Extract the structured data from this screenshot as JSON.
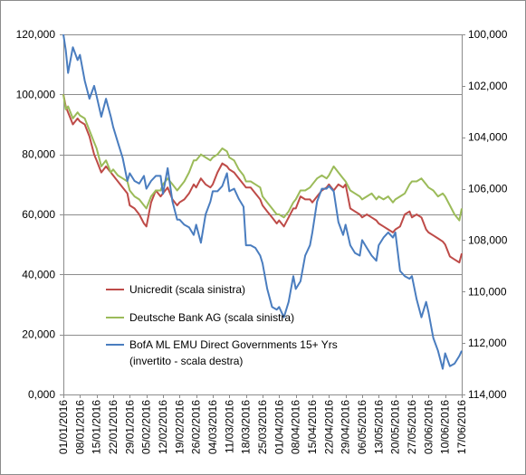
{
  "chart_data": {
    "type": "line",
    "y_left": {
      "min": 0,
      "max": 120000,
      "ticks": [
        0,
        20000,
        40000,
        60000,
        80000,
        100000,
        120000
      ],
      "tick_labels": [
        "0,000",
        "20,000",
        "40,000",
        "60,000",
        "80,000",
        "100,000",
        "120,000"
      ]
    },
    "y_right": {
      "min": 100000,
      "max": 114000,
      "inverted": true,
      "ticks": [
        100000,
        102000,
        104000,
        106000,
        108000,
        110000,
        112000,
        114000
      ],
      "tick_labels": [
        "100,000",
        "102,000",
        "104,000",
        "106,000",
        "108,000",
        "110,000",
        "112,000",
        "114,000"
      ]
    },
    "x_axis": {
      "start": "2016-01-01",
      "end": "2016-06-17",
      "tick_labels": [
        "01/01/2016",
        "08/01/2016",
        "15/01/2016",
        "22/01/2016",
        "29/01/2016",
        "05/02/2016",
        "12/02/2016",
        "19/02/2016",
        "26/02/2016",
        "04/03/2016",
        "11/03/2016",
        "18/03/2016",
        "25/03/2016",
        "01/04/2016",
        "08/04/2016",
        "15/04/2016",
        "22/04/2016",
        "29/04/2016",
        "06/05/2016",
        "13/05/2016",
        "20/05/2016",
        "27/05/2016",
        "03/06/2016",
        "10/06/2016",
        "17/06/2016"
      ]
    },
    "grid": "horizontal",
    "legend_position": "center-left",
    "series": [
      {
        "name": "Unicredit (scala sinistra)",
        "axis": "left",
        "color": "#be4b48",
        "x": [
          "2016-01-01",
          "2016-01-02",
          "2016-01-03",
          "2016-01-05",
          "2016-01-07",
          "2016-01-08",
          "2016-01-10",
          "2016-01-12",
          "2016-01-14",
          "2016-01-15",
          "2016-01-17",
          "2016-01-19",
          "2016-01-21",
          "2016-01-22",
          "2016-01-24",
          "2016-01-26",
          "2016-01-28",
          "2016-01-29",
          "2016-01-31",
          "2016-02-02",
          "2016-02-04",
          "2016-02-05",
          "2016-02-07",
          "2016-02-09",
          "2016-02-11",
          "2016-02-12",
          "2016-02-14",
          "2016-02-16",
          "2016-02-18",
          "2016-02-19",
          "2016-02-21",
          "2016-02-23",
          "2016-02-25",
          "2016-02-26",
          "2016-02-28",
          "2016-03-01",
          "2016-03-03",
          "2016-03-04",
          "2016-03-06",
          "2016-03-08",
          "2016-03-10",
          "2016-03-11",
          "2016-03-13",
          "2016-03-15",
          "2016-03-17",
          "2016-03-18",
          "2016-03-20",
          "2016-03-22",
          "2016-03-24",
          "2016-03-25",
          "2016-03-27",
          "2016-03-29",
          "2016-03-31",
          "2016-04-01",
          "2016-04-03",
          "2016-04-05",
          "2016-04-07",
          "2016-04-08",
          "2016-04-10",
          "2016-04-12",
          "2016-04-14",
          "2016-04-15",
          "2016-04-17",
          "2016-04-19",
          "2016-04-21",
          "2016-04-22",
          "2016-04-24",
          "2016-04-26",
          "2016-04-28",
          "2016-04-29",
          "2016-05-01",
          "2016-05-03",
          "2016-05-05",
          "2016-05-06",
          "2016-05-08",
          "2016-05-10",
          "2016-05-12",
          "2016-05-13",
          "2016-05-15",
          "2016-05-17",
          "2016-05-19",
          "2016-05-20",
          "2016-05-22",
          "2016-05-24",
          "2016-05-26",
          "2016-05-27",
          "2016-05-29",
          "2016-05-31",
          "2016-06-02",
          "2016-06-03",
          "2016-06-05",
          "2016-06-07",
          "2016-06-09",
          "2016-06-10",
          "2016-06-12",
          "2016-06-14",
          "2016-06-16",
          "2016-06-17"
        ],
        "y": [
          100000,
          96000,
          94000,
          90000,
          92000,
          91000,
          90000,
          86000,
          80000,
          78000,
          74000,
          76000,
          74000,
          73000,
          71000,
          69000,
          67000,
          63000,
          62000,
          60000,
          57000,
          56000,
          64000,
          68000,
          66000,
          67000,
          69000,
          65000,
          63000,
          64000,
          65000,
          67000,
          70000,
          69000,
          72000,
          70000,
          69000,
          70000,
          74000,
          77000,
          76000,
          75000,
          74000,
          72000,
          70000,
          69000,
          69000,
          67000,
          65000,
          63000,
          61000,
          59000,
          57000,
          58000,
          56000,
          59000,
          62000,
          62000,
          66000,
          65000,
          65000,
          64000,
          66000,
          68000,
          69000,
          70000,
          68000,
          70000,
          69000,
          70000,
          62000,
          61000,
          60000,
          59000,
          60000,
          59000,
          58000,
          57000,
          56000,
          55000,
          54000,
          55000,
          56000,
          60000,
          61000,
          59000,
          60000,
          59000,
          55000,
          54000,
          53000,
          52000,
          51000,
          50000,
          46000,
          45000,
          44000,
          47000
        ]
      },
      {
        "name": "Deutsche Bank AG (scala sinistra)",
        "axis": "left",
        "color": "#9bbb59",
        "x": [
          "2016-01-01",
          "2016-01-02",
          "2016-01-03",
          "2016-01-05",
          "2016-01-07",
          "2016-01-08",
          "2016-01-10",
          "2016-01-12",
          "2016-01-14",
          "2016-01-15",
          "2016-01-17",
          "2016-01-19",
          "2016-01-21",
          "2016-01-22",
          "2016-01-24",
          "2016-01-26",
          "2016-01-28",
          "2016-01-29",
          "2016-01-31",
          "2016-02-02",
          "2016-02-04",
          "2016-02-05",
          "2016-02-07",
          "2016-02-09",
          "2016-02-11",
          "2016-02-12",
          "2016-02-14",
          "2016-02-16",
          "2016-02-18",
          "2016-02-19",
          "2016-02-21",
          "2016-02-23",
          "2016-02-25",
          "2016-02-26",
          "2016-02-28",
          "2016-03-01",
          "2016-03-03",
          "2016-03-04",
          "2016-03-06",
          "2016-03-08",
          "2016-03-10",
          "2016-03-11",
          "2016-03-13",
          "2016-03-15",
          "2016-03-17",
          "2016-03-18",
          "2016-03-20",
          "2016-03-22",
          "2016-03-24",
          "2016-03-25",
          "2016-03-27",
          "2016-03-29",
          "2016-03-31",
          "2016-04-01",
          "2016-04-03",
          "2016-04-05",
          "2016-04-07",
          "2016-04-08",
          "2016-04-10",
          "2016-04-12",
          "2016-04-14",
          "2016-04-15",
          "2016-04-17",
          "2016-04-19",
          "2016-04-21",
          "2016-04-22",
          "2016-04-24",
          "2016-04-26",
          "2016-04-28",
          "2016-04-29",
          "2016-05-01",
          "2016-05-03",
          "2016-05-05",
          "2016-05-06",
          "2016-05-08",
          "2016-05-10",
          "2016-05-12",
          "2016-05-13",
          "2016-05-15",
          "2016-05-17",
          "2016-05-19",
          "2016-05-20",
          "2016-05-22",
          "2016-05-24",
          "2016-05-26",
          "2016-05-27",
          "2016-05-29",
          "2016-05-31",
          "2016-06-02",
          "2016-06-03",
          "2016-06-05",
          "2016-06-07",
          "2016-06-09",
          "2016-06-10",
          "2016-06-12",
          "2016-06-14",
          "2016-06-16",
          "2016-06-17"
        ],
        "y": [
          100000,
          95000,
          96000,
          92000,
          94000,
          93000,
          92000,
          88000,
          84000,
          82000,
          76000,
          78000,
          74000,
          75000,
          73000,
          72000,
          71000,
          68000,
          66000,
          65000,
          63000,
          62000,
          66000,
          68000,
          68000,
          70000,
          72000,
          70000,
          68000,
          69000,
          71000,
          74000,
          78000,
          78000,
          80000,
          79000,
          78000,
          79000,
          80000,
          82000,
          81000,
          79000,
          78000,
          75000,
          73000,
          71000,
          71000,
          70000,
          69000,
          66000,
          64000,
          62000,
          60000,
          60000,
          59000,
          61000,
          64000,
          65000,
          68000,
          68000,
          69000,
          70000,
          72000,
          73000,
          72000,
          73000,
          76000,
          74000,
          72000,
          71000,
          68000,
          67000,
          66000,
          65000,
          66000,
          67000,
          65000,
          66000,
          65000,
          66000,
          64000,
          65000,
          66000,
          67000,
          70000,
          71000,
          71000,
          72000,
          70000,
          69000,
          68000,
          66000,
          67000,
          66000,
          63000,
          60000,
          58000,
          62000
        ]
      },
      {
        "name": "BofA ML EMU Direct Governments 15+ Yrs (invertito - scala destra)",
        "legend_lines": [
          "BofA ML EMU Direct Governments 15+ Yrs",
          "(invertito - scala destra)"
        ],
        "axis": "right",
        "color": "#4a7dbf",
        "x": [
          "2016-01-01",
          "2016-01-02",
          "2016-01-03",
          "2016-01-05",
          "2016-01-07",
          "2016-01-08",
          "2016-01-10",
          "2016-01-12",
          "2016-01-14",
          "2016-01-15",
          "2016-01-17",
          "2016-01-19",
          "2016-01-21",
          "2016-01-22",
          "2016-01-24",
          "2016-01-26",
          "2016-01-28",
          "2016-01-29",
          "2016-01-31",
          "2016-02-02",
          "2016-02-04",
          "2016-02-05",
          "2016-02-07",
          "2016-02-09",
          "2016-02-11",
          "2016-02-12",
          "2016-02-14",
          "2016-02-16",
          "2016-02-18",
          "2016-02-19",
          "2016-02-21",
          "2016-02-23",
          "2016-02-25",
          "2016-02-26",
          "2016-02-28",
          "2016-03-01",
          "2016-03-03",
          "2016-03-04",
          "2016-03-06",
          "2016-03-08",
          "2016-03-10",
          "2016-03-11",
          "2016-03-13",
          "2016-03-15",
          "2016-03-17",
          "2016-03-18",
          "2016-03-20",
          "2016-03-22",
          "2016-03-24",
          "2016-03-25",
          "2016-03-27",
          "2016-03-29",
          "2016-03-31",
          "2016-04-01",
          "2016-04-03",
          "2016-04-05",
          "2016-04-07",
          "2016-04-08",
          "2016-04-10",
          "2016-04-12",
          "2016-04-14",
          "2016-04-15",
          "2016-04-17",
          "2016-04-19",
          "2016-04-21",
          "2016-04-22",
          "2016-04-24",
          "2016-04-26",
          "2016-04-28",
          "2016-04-29",
          "2016-05-01",
          "2016-05-03",
          "2016-05-05",
          "2016-05-06",
          "2016-05-08",
          "2016-05-10",
          "2016-05-12",
          "2016-05-13",
          "2016-05-15",
          "2016-05-17",
          "2016-05-19",
          "2016-05-20",
          "2016-05-22",
          "2016-05-24",
          "2016-05-26",
          "2016-05-27",
          "2016-05-29",
          "2016-05-31",
          "2016-06-02",
          "2016-06-03",
          "2016-06-05",
          "2016-06-07",
          "2016-06-09",
          "2016-06-10",
          "2016-06-12",
          "2016-06-14",
          "2016-06-16",
          "2016-06-17"
        ],
        "y": [
          100000,
          100600,
          101500,
          100500,
          101000,
          100800,
          101800,
          102500,
          102000,
          102400,
          103200,
          102500,
          103200,
          103600,
          104200,
          104800,
          105700,
          105400,
          105700,
          105800,
          105500,
          106000,
          105700,
          105500,
          105500,
          106200,
          105200,
          106500,
          107200,
          107200,
          107400,
          107500,
          107800,
          107400,
          108100,
          107000,
          106500,
          106100,
          106100,
          105900,
          105400,
          106100,
          106000,
          106400,
          106700,
          108200,
          108200,
          108300,
          108600,
          108900,
          109900,
          110600,
          110700,
          110600,
          111000,
          110400,
          109400,
          109900,
          109600,
          108600,
          108200,
          107700,
          106500,
          106000,
          106000,
          105900,
          106100,
          107300,
          107800,
          107400,
          108200,
          108500,
          108600,
          108000,
          108300,
          108600,
          108800,
          108200,
          107900,
          107700,
          107900,
          107700,
          109200,
          109400,
          109500,
          109400,
          110300,
          111000,
          110400,
          110800,
          111800,
          112300,
          113000,
          112400,
          112900,
          112800,
          112500,
          112300
        ]
      }
    ]
  }
}
